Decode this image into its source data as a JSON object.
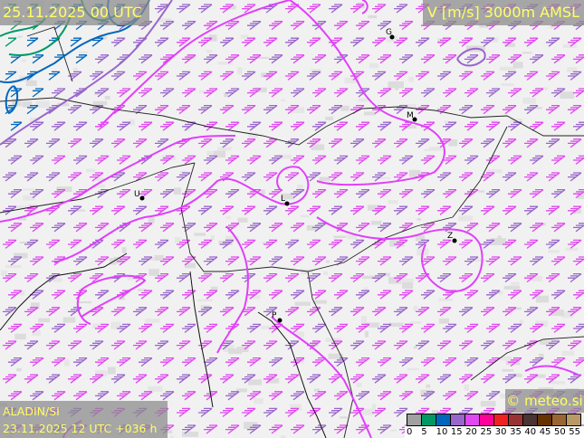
{
  "header": {
    "title": "25.11.2025 00 UTC",
    "parameter": "V [m/s] 3000m AMSL"
  },
  "footer": {
    "model": "ALADIN/SI",
    "run": "23.11.2025 12 UTC +036 h",
    "copyright": "© meteo.si"
  },
  "legend": {
    "colors": [
      "#a0a0a0",
      "#009966",
      "#0066bb",
      "#9966cc",
      "#e048f0",
      "#ff0099",
      "#ee2222",
      "#993333",
      "#4a3333",
      "#663300",
      "#996633",
      "#bb9966"
    ],
    "labels": [
      "0",
      "5",
      "10",
      "15",
      "20",
      "25",
      "30",
      "35",
      "40",
      "45",
      "50",
      "55"
    ]
  },
  "cities": [
    {
      "label": "G"
    },
    {
      "label": "M"
    },
    {
      "label": "U"
    },
    {
      "label": "L"
    },
    {
      "label": "Z"
    },
    {
      "label": "P"
    }
  ],
  "colors": {
    "contour_20": "#e040fb",
    "contour_15": "#9966cc",
    "contour_10": "#0066bb",
    "contour_5": "#009966",
    "border": "#222222"
  }
}
